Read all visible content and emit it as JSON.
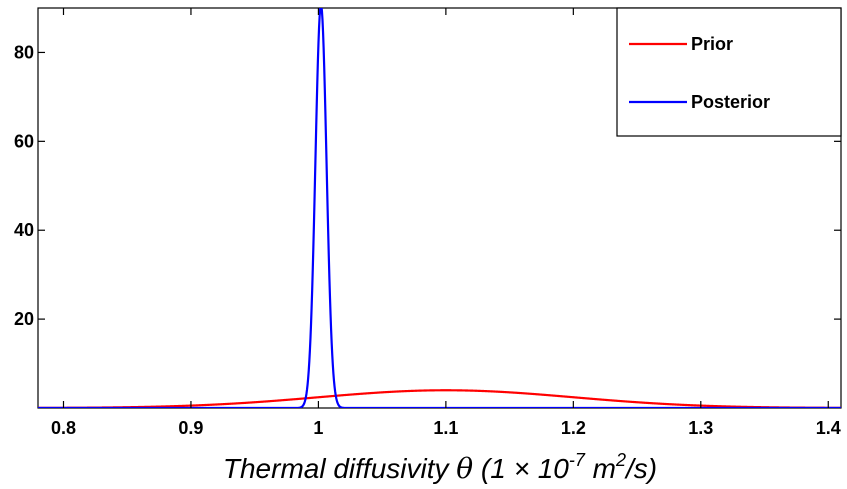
{
  "chart_data": {
    "type": "line",
    "title": "",
    "xlabel": {
      "prefix": "Thermal diffusivity ",
      "symbol": "θ",
      "middle": " (1 × 10",
      "exp1": "-7",
      "unit": " m",
      "exp2": "2",
      "suffix": "/s)"
    },
    "ylabel": "",
    "xlim": [
      0.78,
      1.41
    ],
    "ylim": [
      0,
      90
    ],
    "xticks": [
      0.8,
      0.9,
      1,
      1.1,
      1.2,
      1.3,
      1.4
    ],
    "xtick_labels": [
      "0.8",
      "0.9",
      "1",
      "1.1",
      "1.2",
      "1.3",
      "1.4"
    ],
    "yticks": [
      20,
      40,
      60,
      80
    ],
    "ytick_labels": [
      "20",
      "40",
      "60",
      "80"
    ],
    "grid": false,
    "legend_position": "top-right",
    "series": [
      {
        "name": "Prior",
        "color": "#ff0000",
        "distribution": "normal",
        "mean": 1.1,
        "std": 0.1,
        "x": [
          0.78,
          0.8,
          0.85,
          0.9,
          0.95,
          1.0,
          1.05,
          1.1,
          1.15,
          1.2,
          1.25,
          1.3,
          1.35,
          1.4,
          1.41
        ],
        "y": [
          0.03,
          0.04,
          0.18,
          0.54,
          1.3,
          2.42,
          3.52,
          3.99,
          3.52,
          2.42,
          1.3,
          0.54,
          0.18,
          0.04,
          0.03
        ]
      },
      {
        "name": "Posterior",
        "color": "#0000ff",
        "distribution": "normal",
        "mean": 1.002,
        "std": 0.0044,
        "x": [
          0.78,
          0.985,
          0.99,
          0.993,
          0.996,
          0.999,
          1.002,
          1.005,
          1.008,
          1.011,
          1.014,
          1.019,
          1.41
        ],
        "y": [
          0,
          0.05,
          2.1,
          11.6,
          36.5,
          72.6,
          90.7,
          72.6,
          36.5,
          11.6,
          2.1,
          0.05,
          0
        ]
      }
    ]
  }
}
